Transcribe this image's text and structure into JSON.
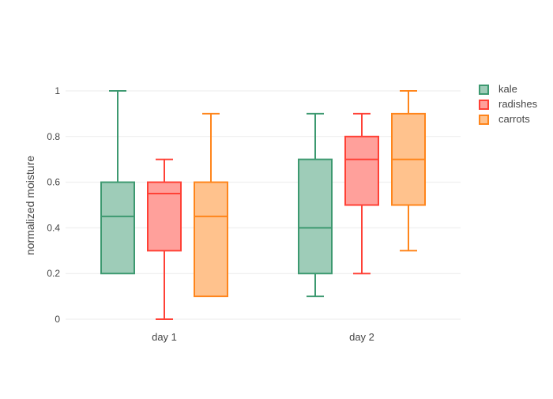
{
  "chart_data": {
    "type": "box",
    "title": "",
    "xlabel": "",
    "ylabel": "normalized moisture",
    "boxmode": "group",
    "grid": true,
    "legend_position": "top-right",
    "categories": [
      "day 1",
      "day 2"
    ],
    "yticks": [
      "0",
      "0.2",
      "0.4",
      "0.6",
      "0.8",
      "1"
    ],
    "ytick_values": [
      0,
      0.2,
      0.4,
      0.6,
      0.8,
      1
    ],
    "ylim": [
      -0.07,
      1.07
    ],
    "series": [
      {
        "name": "kale",
        "line_color": "#3D9970",
        "fill_color": "#9ECCB8",
        "boxes": [
          {
            "category": "day 1",
            "min": 0.2,
            "q1": 0.2,
            "median": 0.45,
            "q3": 0.6,
            "max": 1.0
          },
          {
            "category": "day 2",
            "min": 0.1,
            "q1": 0.2,
            "median": 0.4,
            "q3": 0.7,
            "max": 0.9
          }
        ]
      },
      {
        "name": "radishes",
        "line_color": "#FF4136",
        "fill_color": "#FFA09B",
        "boxes": [
          {
            "category": "day 1",
            "min": 0.0,
            "q1": 0.3,
            "median": 0.55,
            "q3": 0.6,
            "max": 0.7
          },
          {
            "category": "day 2",
            "min": 0.2,
            "q1": 0.5,
            "median": 0.7,
            "q3": 0.8,
            "max": 0.9
          }
        ]
      },
      {
        "name": "carrots",
        "line_color": "#FF851B",
        "fill_color": "#FFC28D",
        "boxes": [
          {
            "category": "day 1",
            "min": 0.1,
            "q1": 0.1,
            "median": 0.45,
            "q3": 0.6,
            "max": 0.9
          },
          {
            "category": "day 2",
            "min": 0.3,
            "q1": 0.5,
            "median": 0.7,
            "q3": 0.9,
            "max": 1.0
          }
        ]
      }
    ]
  },
  "colors": {
    "background": "#FFFFFF",
    "grid": "#EBEBEB",
    "axis_text": "#444444"
  }
}
